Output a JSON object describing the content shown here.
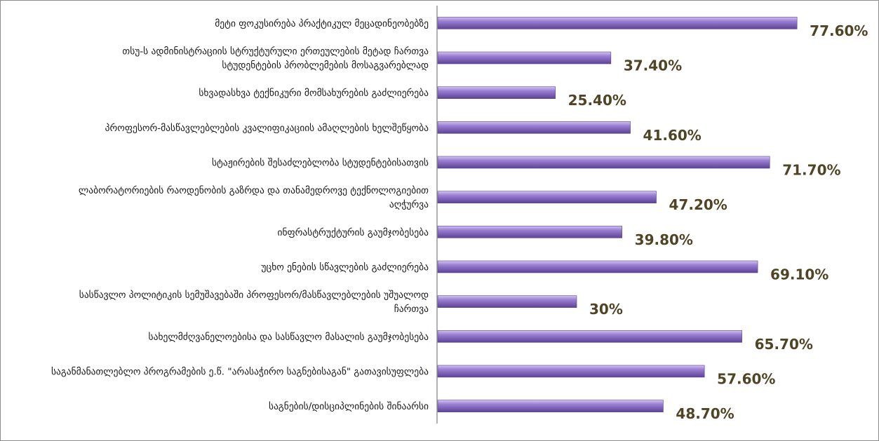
{
  "chart_data": {
    "type": "bar",
    "orientation": "horizontal",
    "title": "",
    "xlabel": "",
    "ylabel": "",
    "xlim": [
      0,
      100
    ],
    "grid": false,
    "legend": "none",
    "colors": {
      "bar": "#8b6fc4",
      "bar_light": "#bba6e6",
      "bar_dark": "#5d4396",
      "value_text": "#4f4424",
      "axis": "#7f7f7f"
    },
    "categories": [
      [
        "მეტი ფოკუსირება პრაქტიკულ მეცადინეობებზე"
      ],
      [
        "თსუ-ს ადმინისტრაციის სტრუქტურული ერთეულების მეტად ჩართვა",
        "სტუდენტების პრობლემების მოსაგვარებლად"
      ],
      [
        "სხვადასხვა ტექნიკური მომსახურების გაძლიერება"
      ],
      [
        "პროფესორ-მასწავლებლების კვალიფიკაციის ამაღლების ხელშეწყობა"
      ],
      [
        "სტაჟირების შესაძლებლობა სტუდენტებისათვის"
      ],
      [
        "ლაბორატორიების რაოდენობის გაზრდა და თანამედროვე ტექნოლოგიებით",
        "აღჭურვა"
      ],
      [
        "ინფრასტრუქტურის გაუმჯობესება"
      ],
      [
        "უცხო ენების სწავლების გაძლიერება"
      ],
      [
        "სასწავლო პოლიტიკის სემუშავებაში პროფესორ/მასწავლებლების უშუალოდ",
        "ჩართვა"
      ],
      [
        "სახელმძღვანელოებისა და სასწავლო მასალის გაუმჯობესება"
      ],
      [
        "საგანმანათლებლო პროგრამების ე.წ. \"არასაჭირო საგნებისაგან\" გათავისუფლება"
      ],
      [
        "საგნების/დისციპლინების შინაარსი"
      ]
    ],
    "values": [
      77.6,
      37.4,
      25.4,
      41.6,
      71.7,
      47.2,
      39.8,
      69.1,
      30,
      65.7,
      57.6,
      48.7
    ],
    "data_labels": [
      "77.60%",
      "37.40%",
      "25.40%",
      "41.60%",
      "71.70%",
      "47.20%",
      "39.80%",
      "69.10%",
      "30%",
      "65.70%",
      "57.60%",
      "48.70%"
    ]
  }
}
